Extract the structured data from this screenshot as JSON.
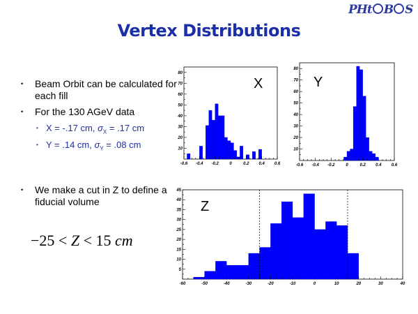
{
  "logo": {
    "pre": "PH",
    "mid": "t",
    "post": "B",
    "end": "S"
  },
  "title": "Vertex Distributions",
  "bullets": [
    "Beam Orbit can be calculated for each fill",
    "For the 130 AGeV data"
  ],
  "sub_bullets": [
    {
      "lead": "X = -.17 cm, ",
      "sym": "σ",
      "axis": "X",
      "tail": " = .17 cm"
    },
    {
      "lead": "Y =  .14 cm, ",
      "sym": "σ",
      "axis": "Y",
      "tail": " = .08 cm"
    }
  ],
  "bullet_cut": "We make a cut in Z to define a fiducial volume",
  "formula": {
    "minus": "−",
    "a": "25",
    "lt1": " < ",
    "z": "Z",
    "lt2": " < ",
    "b": "15",
    "unit": " cm"
  },
  "colors": {
    "title": "#1d2fa6",
    "bars": "#0000ff"
  },
  "chart_data": [
    {
      "type": "bar",
      "label": "X",
      "xlim": [
        -0.6,
        0.6
      ],
      "ylim": [
        0,
        85
      ],
      "xticks": [
        "-0.6",
        "-0.4",
        "-0.2",
        "0",
        "0.2",
        "0.4",
        "0.6"
      ],
      "yticks": [
        "10",
        "20",
        "30",
        "40",
        "50",
        "60",
        "70",
        "80"
      ],
      "bin_edges": [
        -0.56,
        -0.52,
        -0.48,
        -0.44,
        -0.4,
        -0.36,
        -0.32,
        -0.28,
        -0.24,
        -0.2,
        -0.16,
        -0.12,
        -0.08,
        -0.04,
        0.0,
        0.04,
        0.08,
        0.12,
        0.16,
        0.2,
        0.24,
        0.28,
        0.32,
        0.36,
        0.4,
        0.44
      ],
      "values": [
        5,
        0,
        0,
        0,
        12,
        0,
        31,
        45,
        36,
        51,
        40,
        40,
        20,
        17,
        15,
        8,
        2,
        12,
        0,
        4,
        0,
        7,
        0,
        9,
        0
      ]
    },
    {
      "type": "bar",
      "label": "Y",
      "xlim": [
        -0.6,
        0.6
      ],
      "ylim": [
        0,
        85
      ],
      "xticks": [
        "-0.6",
        "-0.4",
        "-0.2",
        "0",
        "0.2",
        "0.4",
        "0.6"
      ],
      "yticks": [
        "10",
        "20",
        "30",
        "40",
        "50",
        "60",
        "70",
        "80"
      ],
      "bin_edges": [
        -0.04,
        0.0,
        0.04,
        0.08,
        0.12,
        0.16,
        0.2,
        0.24,
        0.28,
        0.32,
        0.36,
        0.4,
        0.44
      ],
      "values": [
        3,
        8,
        10,
        47,
        82,
        79,
        56,
        20,
        8,
        6,
        3,
        0
      ]
    },
    {
      "type": "bar",
      "label": "Z",
      "xlim": [
        -60,
        40
      ],
      "ylim": [
        0,
        45
      ],
      "xticks": [
        "-60",
        "-50",
        "-40",
        "-30",
        "-20",
        "-10",
        "0",
        "10",
        "20",
        "30",
        "40"
      ],
      "yticks": [
        "5",
        "10",
        "15",
        "20",
        "25",
        "30",
        "35",
        "40",
        "45"
      ],
      "bin_edges": [
        -55,
        -50,
        -45,
        -40,
        -35,
        -30,
        -25,
        -20,
        -15,
        -10,
        -5,
        0,
        5,
        10,
        15,
        20
      ],
      "values": [
        1,
        4,
        9,
        7,
        7,
        13,
        16,
        28,
        39,
        31,
        43,
        25,
        29,
        27,
        13
      ],
      "cut_lines": [
        -25,
        15
      ]
    }
  ]
}
